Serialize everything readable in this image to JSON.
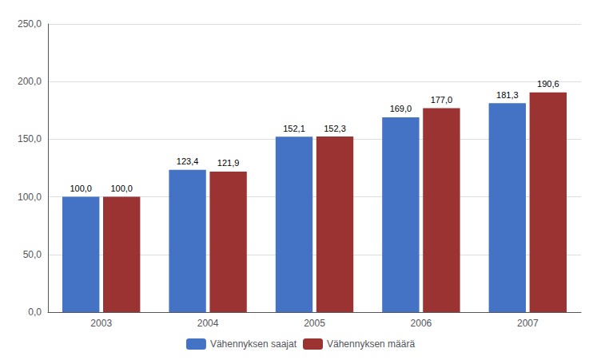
{
  "chart_data": {
    "type": "bar",
    "categories": [
      "2003",
      "2004",
      "2005",
      "2006",
      "2007"
    ],
    "series": [
      {
        "name": "Vähennyksen saajat",
        "color": "#4472C4",
        "values": [
          100.0,
          123.4,
          152.1,
          169.0,
          181.3
        ],
        "value_labels": [
          "100,0",
          "123,4",
          "152,1",
          "169,0",
          "181,3"
        ]
      },
      {
        "name": "Vähennyksen määrä",
        "color": "#9B3333",
        "values": [
          100.0,
          121.9,
          152.3,
          177.0,
          190.6
        ],
        "value_labels": [
          "100,0",
          "121,9",
          "152,3",
          "177,0",
          "190,6"
        ]
      }
    ],
    "ylim": [
      0,
      250
    ],
    "yticks": [
      {
        "value": 0,
        "label": "0,0"
      },
      {
        "value": 50,
        "label": "50,0"
      },
      {
        "value": 100,
        "label": "100,0"
      },
      {
        "value": 150,
        "label": "150,0"
      },
      {
        "value": 200,
        "label": "200,0"
      },
      {
        "value": 250,
        "label": "250,0"
      }
    ],
    "grid": true,
    "legend": "bottom",
    "data_labels": true
  }
}
